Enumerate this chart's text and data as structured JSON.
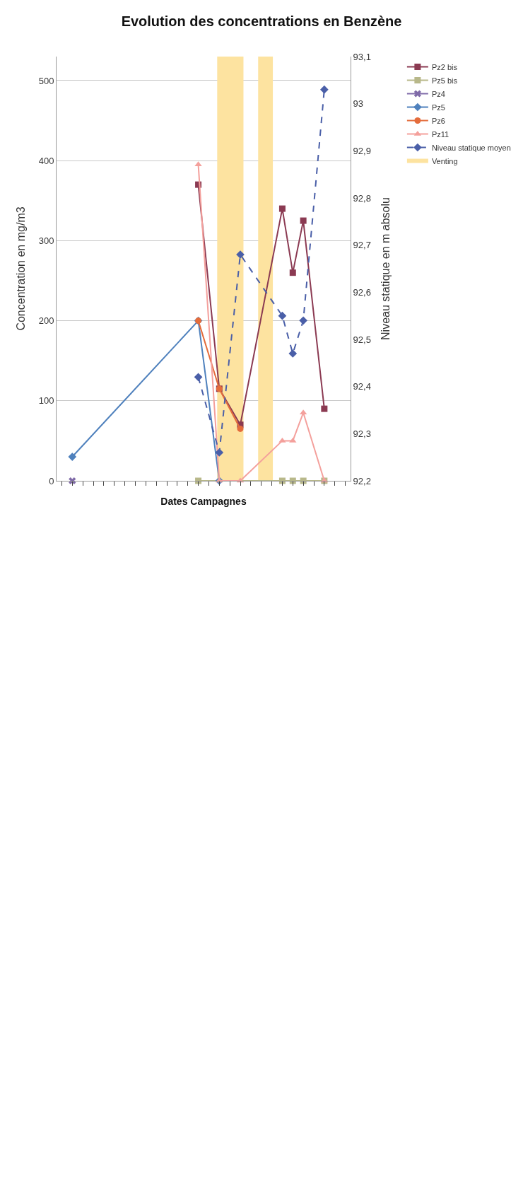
{
  "chart_data": {
    "type": "line",
    "title": "Evolution des concentrations en Benzène",
    "xlabel": "Dates Campagnes",
    "ylabel": "Concentration en mg/m3",
    "y2label": "Niveau statique en m absolu",
    "categories": [
      null,
      null,
      null,
      null,
      null,
      null,
      null,
      null,
      null,
      null,
      null,
      null,
      null,
      null,
      null,
      null,
      null,
      null,
      null,
      null,
      null,
      null,
      null,
      null,
      null,
      null,
      null,
      null
    ],
    "ylim": [
      0,
      530
    ],
    "yticks": [
      0,
      100,
      200,
      300,
      400,
      500
    ],
    "y2lim": [
      92.2,
      93.1
    ],
    "y2ticks": [
      {
        "value": 92.2,
        "label": "92,2"
      },
      {
        "value": 92.3,
        "label": "92,3"
      },
      {
        "value": 92.4,
        "label": "92,4"
      },
      {
        "value": 92.5,
        "label": "92,5"
      },
      {
        "value": 92.6,
        "label": "92,6"
      },
      {
        "value": 92.7,
        "label": "92,7"
      },
      {
        "value": 92.8,
        "label": "92,8"
      },
      {
        "value": 92.9,
        "label": "92,9"
      },
      {
        "value": 93.0,
        "label": "93"
      },
      {
        "value": 93.1,
        "label": "93,1"
      }
    ],
    "grid": "y",
    "legend": "right",
    "series": [
      {
        "name": "Pz2 bis",
        "color": "#8b3a52",
        "marker": "square",
        "values": [
          null,
          null,
          null,
          null,
          null,
          null,
          null,
          null,
          null,
          null,
          null,
          null,
          null,
          370,
          null,
          115,
          null,
          70,
          null,
          null,
          null,
          340,
          260,
          325,
          null,
          90,
          null,
          null
        ]
      },
      {
        "name": "Pz5 bis",
        "color": "#b8b88a",
        "marker": "square",
        "values": [
          null,
          null,
          null,
          null,
          null,
          null,
          null,
          null,
          null,
          null,
          null,
          null,
          null,
          0,
          null,
          null,
          null,
          null,
          null,
          null,
          null,
          0,
          0,
          0,
          null,
          0,
          null,
          null
        ]
      },
      {
        "name": "Pz4",
        "color": "#7f6aa8",
        "marker": "cross",
        "values": [
          null,
          0,
          null,
          null,
          null,
          null,
          null,
          null,
          null,
          null,
          null,
          null,
          null,
          null,
          null,
          null,
          null,
          null,
          null,
          null,
          null,
          null,
          null,
          null,
          null,
          null,
          null,
          null
        ]
      },
      {
        "name": "Pz5",
        "color": "#4f81bd",
        "marker": "diamond",
        "values": [
          null,
          30,
          null,
          null,
          null,
          null,
          null,
          null,
          null,
          null,
          null,
          null,
          null,
          200,
          null,
          0,
          null,
          null,
          null,
          null,
          null,
          null,
          null,
          null,
          null,
          null,
          null,
          null
        ]
      },
      {
        "name": "Pz6",
        "color": "#e46c3c",
        "marker": "circle",
        "values": [
          null,
          null,
          null,
          null,
          null,
          null,
          null,
          null,
          null,
          null,
          null,
          null,
          null,
          200,
          null,
          115,
          null,
          65,
          null,
          null,
          null,
          null,
          null,
          null,
          null,
          null,
          null,
          null
        ]
      },
      {
        "name": "Pz11",
        "color": "#f4a09c",
        "marker": "triangle",
        "values": [
          null,
          null,
          null,
          null,
          null,
          null,
          null,
          null,
          null,
          null,
          null,
          null,
          null,
          395,
          null,
          0,
          null,
          0,
          null,
          null,
          null,
          50,
          50,
          85,
          null,
          0,
          null,
          null
        ]
      },
      {
        "name": "Niveau statique moyen",
        "color": "#4a5fa8",
        "marker": "diamond",
        "line_style": "dashed",
        "axis": "y2",
        "values": [
          null,
          null,
          null,
          null,
          null,
          null,
          null,
          null,
          null,
          null,
          null,
          null,
          null,
          92.42,
          null,
          92.26,
          null,
          92.68,
          null,
          null,
          null,
          92.55,
          92.47,
          92.54,
          null,
          93.03,
          null,
          null
        ]
      }
    ],
    "annotations": [
      "Venting"
    ]
  }
}
